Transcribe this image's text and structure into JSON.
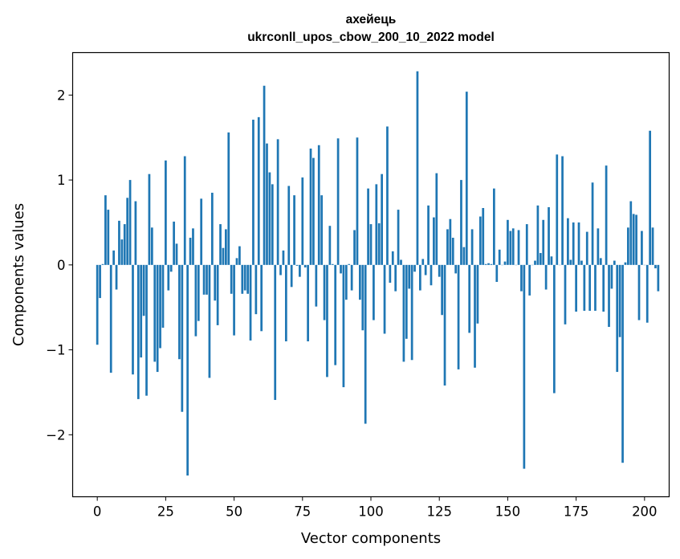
{
  "chart_data": {
    "type": "bar",
    "title_line1": "ахейець",
    "title_line2": "ukrconll_upos_cbow_200_10_2022 model",
    "xlabel": "Vector components",
    "ylabel": "Components values",
    "xlim": [
      -9,
      209
    ],
    "ylim": [
      -2.73,
      2.5
    ],
    "xticks": [
      0,
      25,
      50,
      75,
      100,
      125,
      150,
      175,
      200
    ],
    "yticks": [
      -2,
      -1,
      0,
      1,
      2
    ],
    "ytick_labels": [
      "−2",
      "−1",
      "0",
      "1",
      "2"
    ],
    "bar_color": "#1f77b4",
    "grid": false,
    "values": [
      -0.94,
      -0.39,
      0.01,
      0.82,
      0.65,
      -1.27,
      0.17,
      -0.29,
      0.52,
      0.3,
      0.48,
      0.79,
      1.0,
      -1.29,
      0.75,
      -1.58,
      -1.09,
      -0.6,
      -1.54,
      1.07,
      0.44,
      -1.14,
      -1.26,
      -0.98,
      -0.74,
      1.23,
      -0.3,
      -0.08,
      0.51,
      0.25,
      -1.11,
      -1.73,
      1.28,
      -2.48,
      0.32,
      0.43,
      -0.84,
      -0.66,
      0.78,
      -0.35,
      -0.35,
      -1.33,
      0.85,
      -0.42,
      -0.71,
      0.48,
      0.2,
      0.42,
      1.56,
      -0.34,
      -0.83,
      0.08,
      0.22,
      -0.34,
      -0.3,
      -0.34,
      -0.89,
      1.71,
      -0.58,
      1.74,
      -0.78,
      2.11,
      1.43,
      1.09,
      0.95,
      -1.59,
      1.48,
      -0.12,
      0.17,
      -0.9,
      0.93,
      -0.26,
      0.82,
      -0.01,
      -0.14,
      1.03,
      -0.03,
      -0.9,
      1.37,
      1.26,
      -0.49,
      1.41,
      0.82,
      -0.65,
      -1.32,
      0.46,
      0.01,
      -1.18,
      1.49,
      -0.1,
      -1.44,
      -0.41,
      0.01,
      -0.3,
      0.41,
      1.5,
      -0.41,
      -0.77,
      -1.87,
      0.9,
      0.48,
      -0.65,
      0.95,
      0.49,
      1.07,
      -0.81,
      1.63,
      -0.21,
      0.16,
      -0.31,
      0.65,
      0.06,
      -1.14,
      -0.87,
      -0.28,
      -1.12,
      -0.08,
      2.28,
      -0.3,
      0.07,
      -0.12,
      0.7,
      -0.24,
      0.56,
      1.08,
      -0.14,
      -0.59,
      -1.42,
      0.42,
      0.54,
      0.32,
      -0.1,
      -1.23,
      1.0,
      0.21,
      2.04,
      -0.8,
      0.42,
      -1.21,
      -0.69,
      0.57,
      0.67,
      0.01,
      0.02,
      0.01,
      0.9,
      -0.2,
      0.18,
      0.0,
      0.04,
      0.53,
      0.4,
      0.43,
      0.0,
      0.41,
      -0.31,
      -2.4,
      0.48,
      -0.36,
      0.0,
      0.05,
      0.7,
      0.14,
      0.53,
      -0.29,
      0.68,
      0.1,
      -1.51,
      1.3,
      0.0,
      1.28,
      -0.7,
      0.55,
      0.06,
      0.5,
      -0.55,
      0.5,
      0.05,
      -0.54,
      0.39,
      -0.54,
      0.97,
      -0.54,
      0.43,
      0.08,
      -0.55,
      1.17,
      -0.73,
      -0.28,
      0.05,
      -1.26,
      -0.85,
      -2.33,
      0.03,
      0.44,
      0.75,
      0.6,
      0.59,
      -0.65,
      0.4,
      0.0,
      -0.68,
      1.58,
      0.44,
      -0.04,
      -0.31
    ]
  }
}
